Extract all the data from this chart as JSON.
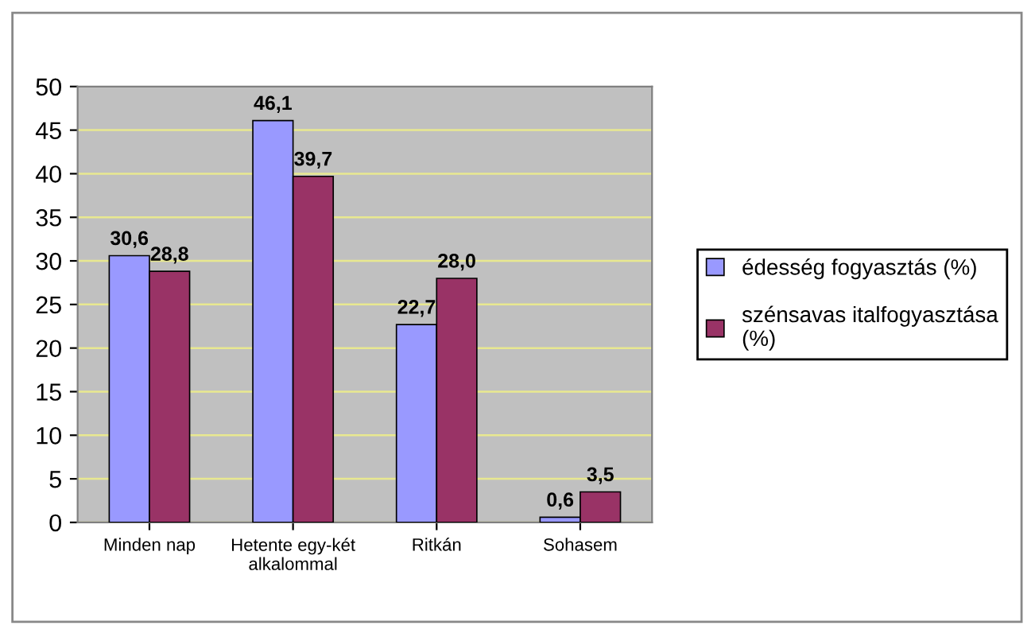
{
  "chart_data": {
    "type": "bar",
    "categories": [
      "Minden nap",
      "Hetente egy-két\nalkalommal",
      "Ritkán",
      "Sohasem"
    ],
    "series": [
      {
        "name": "édesség fogyasztás (%)",
        "color": "#9999ff",
        "values": [
          30.6,
          46.1,
          22.7,
          0.6
        ],
        "value_labels": [
          "30,6",
          "46,1",
          "22,7",
          "0,6"
        ]
      },
      {
        "name": "szénsavas italfogyasztása\n(%)",
        "color": "#993366",
        "values": [
          28.8,
          39.7,
          28.0,
          3.5
        ],
        "value_labels": [
          "28,8",
          "39,7",
          "28,0",
          "3,5"
        ]
      }
    ],
    "ylim": [
      0,
      50
    ],
    "yticks": [
      0,
      5,
      10,
      15,
      20,
      25,
      30,
      35,
      40,
      45,
      50
    ],
    "grid": "y",
    "legend": "right"
  }
}
